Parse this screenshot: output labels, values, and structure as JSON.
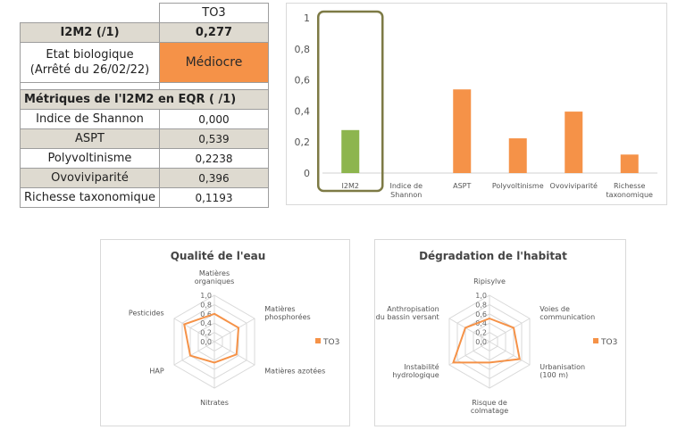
{
  "table": {
    "site": "TO3",
    "i2m2_label": "I2M2 (/1)",
    "i2m2_value": "0,277",
    "etat_line1": "Etat biologique",
    "etat_line2": "(Arrêté du 26/02/22)",
    "etat_value": "Médiocre",
    "metrics_header": "Métriques de l'I2M2 en EQR ( /1)",
    "metrics": [
      {
        "label": "Indice de Shannon",
        "value": "0,000"
      },
      {
        "label": "ASPT",
        "value": "0,539"
      },
      {
        "label": "Polyvoltinisme",
        "value": "0,2238"
      },
      {
        "label": "Ovoviviparité",
        "value": "0,396"
      },
      {
        "label": "Richesse taxonomique",
        "value": "0,1193"
      }
    ]
  },
  "colors": {
    "orange": "#f59248",
    "green": "#8db54e",
    "highlight": "#7d7a45",
    "header_fill": "#dedad0"
  },
  "chart_data": [
    {
      "type": "bar",
      "categories": [
        "I2M2",
        "Indice de Shannon",
        "ASPT",
        "Polyvoltinisme",
        "Ovoviviparité",
        "Richesse taxonomique"
      ],
      "category_lines": [
        [
          "I2M2"
        ],
        [
          "Indice de",
          "Shannon"
        ],
        [
          "ASPT"
        ],
        [
          "Polyvoltinisme"
        ],
        [
          "Ovoviviparité"
        ],
        [
          "Richesse",
          "taxonomique"
        ]
      ],
      "values": [
        0.277,
        0,
        0.539,
        0.2238,
        0.396,
        0.1193
      ],
      "bar_colors": [
        "#8db54e",
        "#f59248",
        "#f59248",
        "#f59248",
        "#f59248",
        "#f59248"
      ],
      "ylim": [
        0,
        1
      ],
      "yticks": [
        "0",
        "0,2",
        "0,4",
        "0,6",
        "0,8",
        "1"
      ],
      "highlighted_category": "I2M2",
      "title": "",
      "xlabel": "",
      "ylabel": ""
    },
    {
      "type": "radar",
      "title": "Qualité de l'eau",
      "axes": [
        "Matières organiques",
        "Matières phosphorées",
        "Matières azotées",
        "Nitrates",
        "HAP",
        "Pesticides"
      ],
      "axis_lines": [
        [
          "Matières",
          "organiques"
        ],
        [
          "Matières",
          "phosphorées"
        ],
        [
          "Matières azotées"
        ],
        [
          "Nitrates"
        ],
        [
          "HAP"
        ],
        [
          "Pesticides"
        ]
      ],
      "series": [
        {
          "name": "TO3",
          "values": [
            0.6,
            0.6,
            0.55,
            0.45,
            0.6,
            0.75
          ]
        }
      ],
      "rticks": [
        "0,0",
        "0,2",
        "0,4",
        "0,6",
        "0,8",
        "1,0"
      ],
      "rlim": [
        0,
        1
      ],
      "legend": "right"
    },
    {
      "type": "radar",
      "title": "Dégradation  de  l'habitat",
      "axes": [
        "Ripisylve",
        "Voies de communication",
        "Urbanisation (100 m)",
        "Risque de colmatage",
        "Instabilité hydrologique",
        "Anthropisation du bassin versant"
      ],
      "axis_lines": [
        [
          "Ripisylve"
        ],
        [
          "Voies de",
          "communication"
        ],
        [
          "Urbanisation",
          "(100 m)"
        ],
        [
          "Risque de",
          "colmatage"
        ],
        [
          "Instabilité",
          "hydrologique"
        ],
        [
          "Anthropisation",
          "du bassin versant"
        ]
      ],
      "series": [
        {
          "name": "TO3",
          "values": [
            0.5,
            0.6,
            0.75,
            0.45,
            0.9,
            0.6
          ]
        }
      ],
      "rticks": [
        "0,0",
        "0,2",
        "0,4",
        "0,6",
        "0,8",
        "1,0"
      ],
      "rlim": [
        0,
        1
      ],
      "legend": "right"
    }
  ]
}
